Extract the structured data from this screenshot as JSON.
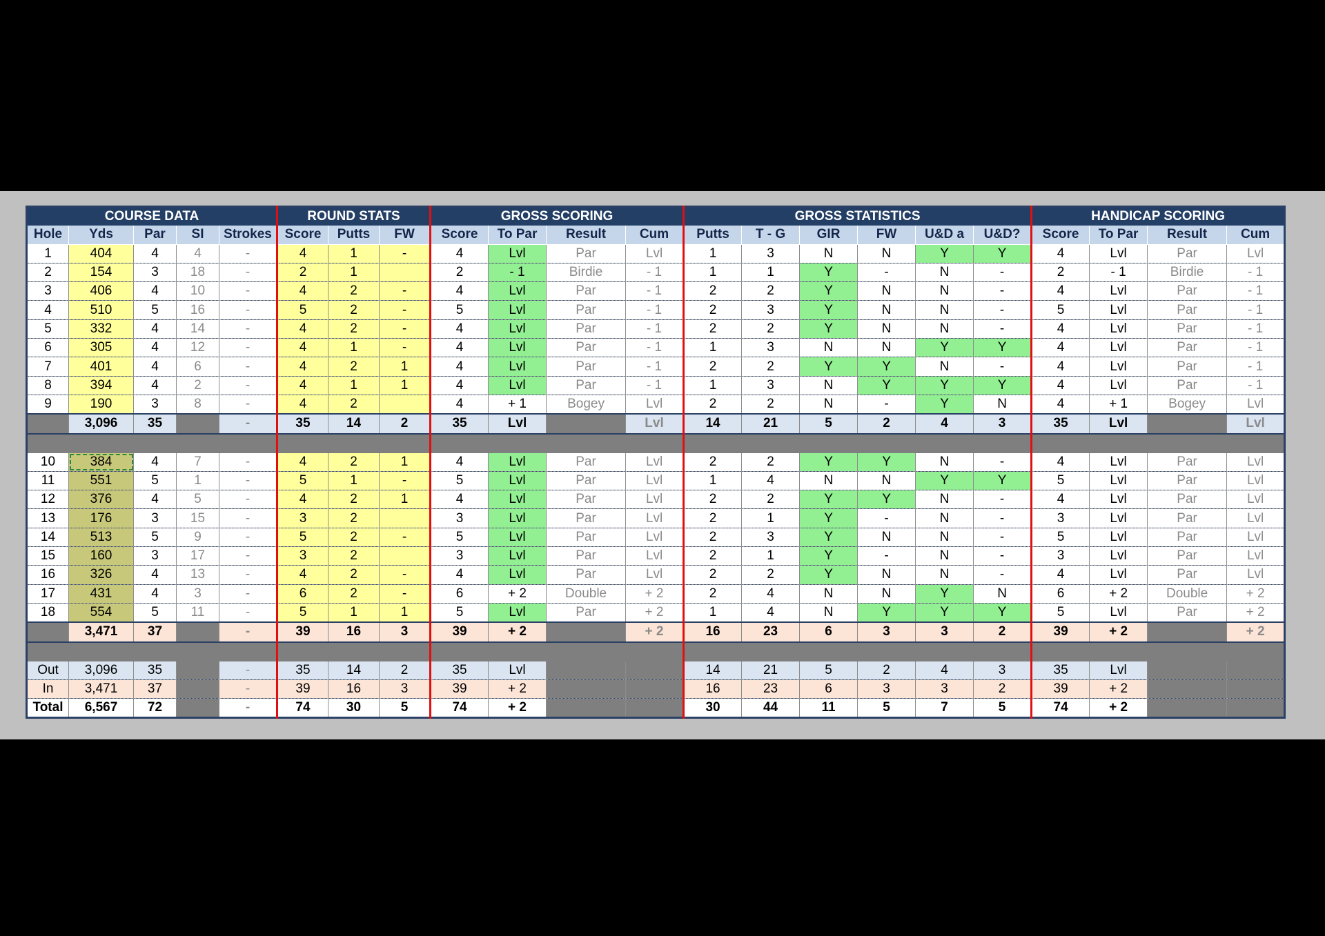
{
  "groups": [
    "COURSE DATA",
    "ROUND STATS",
    "GROSS SCORING",
    "GROSS STATISTICS",
    "HANDICAP SCORING"
  ],
  "columns": [
    "Hole",
    "Yds",
    "Par",
    "SI",
    "Strokes",
    "Score",
    "Putts",
    "FW",
    "Score",
    "To Par",
    "Result",
    "Cum",
    "Putts",
    "T - G",
    "GIR",
    "FW",
    "U&D a",
    "U&D?",
    "Score",
    "To Par",
    "Result",
    "Cum"
  ],
  "front_nine": [
    [
      "1",
      "404",
      "4",
      "4",
      "-",
      "4",
      "1",
      "-",
      "4",
      "Lvl",
      "Par",
      "Lvl",
      "1",
      "3",
      "N",
      "N",
      "Y",
      "Y",
      "4",
      "Lvl",
      "Par",
      "Lvl"
    ],
    [
      "2",
      "154",
      "3",
      "18",
      "-",
      "2",
      "1",
      "",
      "2",
      "- 1",
      "Birdie",
      "- 1",
      "1",
      "1",
      "Y",
      "-",
      "N",
      "-",
      "2",
      "- 1",
      "Birdie",
      "- 1"
    ],
    [
      "3",
      "406",
      "4",
      "10",
      "-",
      "4",
      "2",
      "-",
      "4",
      "Lvl",
      "Par",
      "- 1",
      "2",
      "2",
      "Y",
      "N",
      "N",
      "-",
      "4",
      "Lvl",
      "Par",
      "- 1"
    ],
    [
      "4",
      "510",
      "5",
      "16",
      "-",
      "5",
      "2",
      "-",
      "5",
      "Lvl",
      "Par",
      "- 1",
      "2",
      "3",
      "Y",
      "N",
      "N",
      "-",
      "5",
      "Lvl",
      "Par",
      "- 1"
    ],
    [
      "5",
      "332",
      "4",
      "14",
      "-",
      "4",
      "2",
      "-",
      "4",
      "Lvl",
      "Par",
      "- 1",
      "2",
      "2",
      "Y",
      "N",
      "N",
      "-",
      "4",
      "Lvl",
      "Par",
      "- 1"
    ],
    [
      "6",
      "305",
      "4",
      "12",
      "-",
      "4",
      "1",
      "-",
      "4",
      "Lvl",
      "Par",
      "- 1",
      "1",
      "3",
      "N",
      "N",
      "Y",
      "Y",
      "4",
      "Lvl",
      "Par",
      "- 1"
    ],
    [
      "7",
      "401",
      "4",
      "6",
      "-",
      "4",
      "2",
      "1",
      "4",
      "Lvl",
      "Par",
      "- 1",
      "2",
      "2",
      "Y",
      "Y",
      "N",
      "-",
      "4",
      "Lvl",
      "Par",
      "- 1"
    ],
    [
      "8",
      "394",
      "4",
      "2",
      "-",
      "4",
      "1",
      "1",
      "4",
      "Lvl",
      "Par",
      "- 1",
      "1",
      "3",
      "N",
      "Y",
      "Y",
      "Y",
      "4",
      "Lvl",
      "Par",
      "- 1"
    ],
    [
      "9",
      "190",
      "3",
      "8",
      "-",
      "4",
      "2",
      "",
      "4",
      "+ 1",
      "Bogey",
      "Lvl",
      "2",
      "2",
      "N",
      "-",
      "Y",
      "N",
      "4",
      "+ 1",
      "Bogey",
      "Lvl"
    ]
  ],
  "front_sub": [
    "",
    "3,096",
    "35",
    "",
    "-",
    "35",
    "14",
    "2",
    "35",
    "Lvl",
    "",
    "Lvl",
    "14",
    "21",
    "5",
    "2",
    "4",
    "3",
    "35",
    "Lvl",
    "",
    "Lvl"
  ],
  "back_nine": [
    [
      "10",
      "384",
      "4",
      "7",
      "-",
      "4",
      "2",
      "1",
      "4",
      "Lvl",
      "Par",
      "Lvl",
      "2",
      "2",
      "Y",
      "Y",
      "N",
      "-",
      "4",
      "Lvl",
      "Par",
      "Lvl"
    ],
    [
      "11",
      "551",
      "5",
      "1",
      "-",
      "5",
      "1",
      "-",
      "5",
      "Lvl",
      "Par",
      "Lvl",
      "1",
      "4",
      "N",
      "N",
      "Y",
      "Y",
      "5",
      "Lvl",
      "Par",
      "Lvl"
    ],
    [
      "12",
      "376",
      "4",
      "5",
      "-",
      "4",
      "2",
      "1",
      "4",
      "Lvl",
      "Par",
      "Lvl",
      "2",
      "2",
      "Y",
      "Y",
      "N",
      "-",
      "4",
      "Lvl",
      "Par",
      "Lvl"
    ],
    [
      "13",
      "176",
      "3",
      "15",
      "-",
      "3",
      "2",
      "",
      "3",
      "Lvl",
      "Par",
      "Lvl",
      "2",
      "1",
      "Y",
      "-",
      "N",
      "-",
      "3",
      "Lvl",
      "Par",
      "Lvl"
    ],
    [
      "14",
      "513",
      "5",
      "9",
      "-",
      "5",
      "2",
      "-",
      "5",
      "Lvl",
      "Par",
      "Lvl",
      "2",
      "3",
      "Y",
      "N",
      "N",
      "-",
      "5",
      "Lvl",
      "Par",
      "Lvl"
    ],
    [
      "15",
      "160",
      "3",
      "17",
      "-",
      "3",
      "2",
      "",
      "3",
      "Lvl",
      "Par",
      "Lvl",
      "2",
      "1",
      "Y",
      "-",
      "N",
      "-",
      "3",
      "Lvl",
      "Par",
      "Lvl"
    ],
    [
      "16",
      "326",
      "4",
      "13",
      "-",
      "4",
      "2",
      "-",
      "4",
      "Lvl",
      "Par",
      "Lvl",
      "2",
      "2",
      "Y",
      "N",
      "N",
      "-",
      "4",
      "Lvl",
      "Par",
      "Lvl"
    ],
    [
      "17",
      "431",
      "4",
      "3",
      "-",
      "6",
      "2",
      "-",
      "6",
      "+ 2",
      "Double",
      "+ 2",
      "2",
      "4",
      "N",
      "N",
      "Y",
      "N",
      "6",
      "+ 2",
      "Double",
      "+ 2"
    ],
    [
      "18",
      "554",
      "5",
      "11",
      "-",
      "5",
      "1",
      "1",
      "5",
      "Lvl",
      "Par",
      "+ 2",
      "1",
      "4",
      "N",
      "Y",
      "Y",
      "Y",
      "5",
      "Lvl",
      "Par",
      "+ 2"
    ]
  ],
  "back_sub": [
    "",
    "3,471",
    "37",
    "",
    "-",
    "39",
    "16",
    "3",
    "39",
    "+ 2",
    "",
    "+ 2",
    "16",
    "23",
    "6",
    "3",
    "3",
    "2",
    "39",
    "+ 2",
    "",
    "+ 2"
  ],
  "totals": [
    [
      "Out",
      "3,096",
      "35",
      "",
      "-",
      "35",
      "14",
      "2",
      "35",
      "Lvl",
      "",
      "",
      "14",
      "21",
      "5",
      "2",
      "4",
      "3",
      "35",
      "Lvl",
      "",
      ""
    ],
    [
      "In",
      "3,471",
      "37",
      "",
      "-",
      "39",
      "16",
      "3",
      "39",
      "+ 2",
      "",
      "",
      "16",
      "23",
      "6",
      "3",
      "3",
      "2",
      "39",
      "+ 2",
      "",
      ""
    ],
    [
      "Total",
      "6,567",
      "72",
      "",
      "-",
      "74",
      "30",
      "5",
      "74",
      "+ 2",
      "",
      "",
      "30",
      "44",
      "11",
      "5",
      "7",
      "5",
      "74",
      "+ 2",
      "",
      ""
    ]
  ],
  "colors": {
    "header": "#243f66",
    "subheader": "#c5d6eb",
    "input": "#ffff9c",
    "good": "#92f092",
    "divider": "#e01010"
  }
}
